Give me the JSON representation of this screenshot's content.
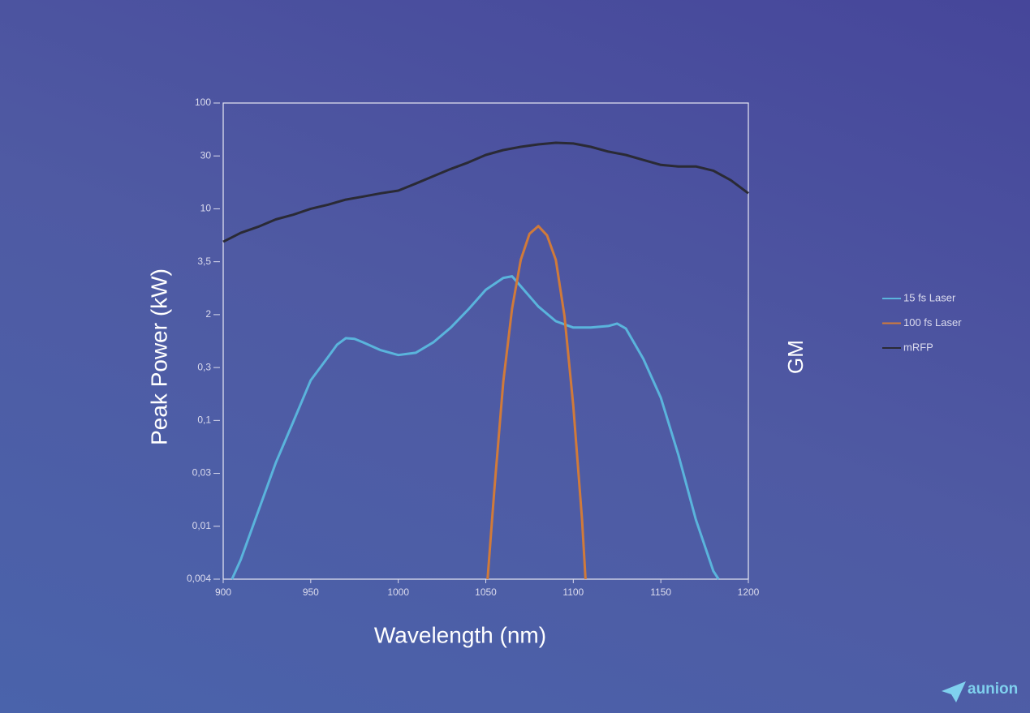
{
  "chart_data": {
    "type": "line",
    "y_label": "Peak Power (kW)",
    "x_label": "Wavelength (nm)",
    "y2_label": "GM",
    "xlim": [
      900,
      1200
    ],
    "xticks": [
      900,
      950,
      1000,
      1050,
      1100,
      1150,
      1200
    ],
    "ylim": [
      0.004,
      100
    ],
    "log_y": true,
    "yticks": [
      {
        "value": 0.004,
        "label": "0,004"
      },
      {
        "value": 0.01,
        "label": "0,01"
      },
      {
        "value": 0.03,
        "label": "0,03"
      },
      {
        "value": 0.1,
        "label": "0,1"
      },
      {
        "value": 0.3,
        "label": "0,3"
      },
      2,
      {
        "value": 3.5,
        "label": "3,5"
      },
      10,
      30,
      100
    ],
    "legend": "right",
    "series": [
      {
        "name": "15 fs Laser",
        "color": "#5ab4dc",
        "x": [
          905,
          910,
          920,
          930,
          940,
          950,
          960,
          965,
          970,
          975,
          980,
          990,
          1000,
          1010,
          1020,
          1030,
          1040,
          1050,
          1060,
          1065,
          1070,
          1080,
          1090,
          1100,
          1110,
          1120,
          1125,
          1130,
          1140,
          1150,
          1160,
          1170,
          1180,
          1183
        ],
        "values": [
          0.004,
          0.0056,
          0.0136,
          0.038,
          0.097,
          0.23,
          0.44,
          0.68,
          0.86,
          0.84,
          0.74,
          0.56,
          0.47,
          0.51,
          0.74,
          1.26,
          2.11,
          2.6,
          2.95,
          3.0,
          2.7,
          2.18,
          1.58,
          1.26,
          1.26,
          1.33,
          1.45,
          1.22,
          0.41,
          0.16,
          0.046,
          0.0115,
          0.0046,
          0.004
        ]
      },
      {
        "name": "100 fs Laser",
        "color": "#d07a3a",
        "x": [
          1051,
          1055,
          1060,
          1065,
          1070,
          1075,
          1080,
          1085,
          1090,
          1095,
          1100,
          1105,
          1107
        ],
        "values": [
          0.004,
          0.0225,
          0.225,
          2.13,
          3.63,
          6.1,
          7.1,
          5.9,
          3.63,
          1.89,
          0.136,
          0.0115,
          0.004
        ]
      },
      {
        "name": "mRFP",
        "color": "#2a2a35",
        "x": [
          900,
          910,
          920,
          930,
          940,
          950,
          960,
          970,
          980,
          990,
          1000,
          1010,
          1020,
          1030,
          1040,
          1050,
          1060,
          1070,
          1080,
          1090,
          1100,
          1110,
          1120,
          1130,
          1140,
          1150,
          1160,
          1170,
          1180,
          1190,
          1200
        ],
        "values": [
          5.2,
          6.2,
          7.0,
          8.1,
          8.9,
          10,
          10.9,
          12.1,
          12.9,
          13.8,
          14.6,
          16.9,
          19.7,
          22.9,
          26.2,
          30.7,
          34.3,
          36.9,
          39,
          40.5,
          39.8,
          36.9,
          33.1,
          30.7,
          27.6,
          24.9,
          24.1,
          24.1,
          22.1,
          18.1,
          13.8
        ]
      }
    ]
  },
  "logo": {
    "text": "aunion"
  }
}
